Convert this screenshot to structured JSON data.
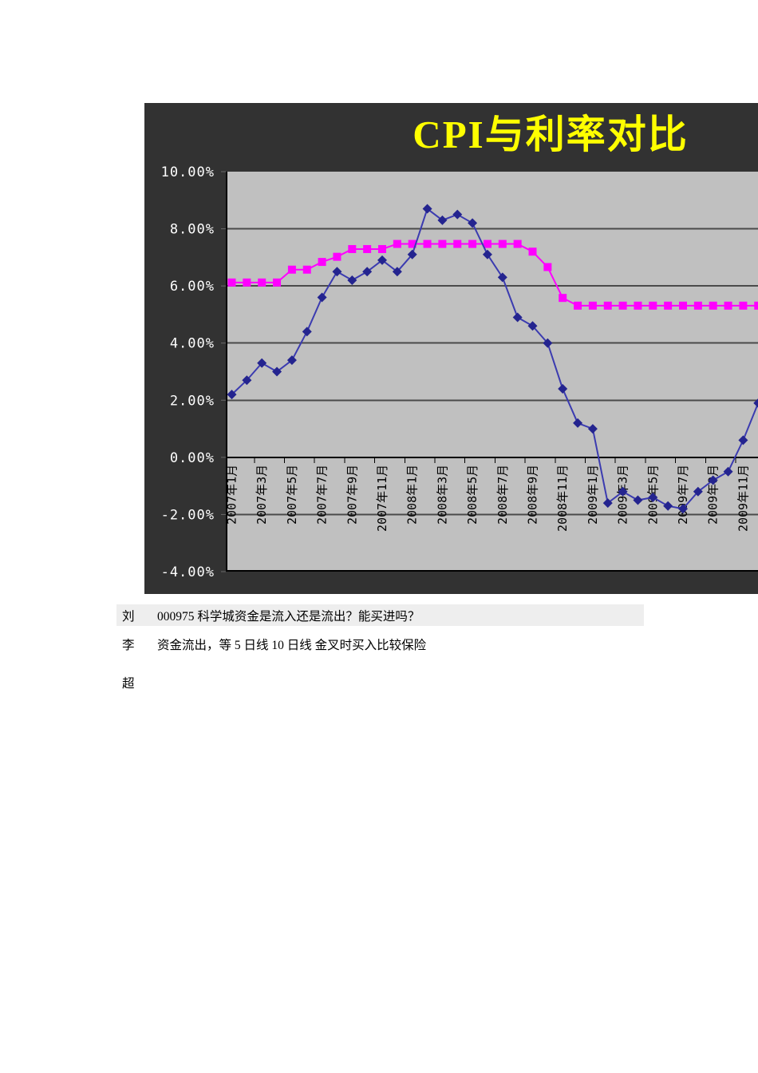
{
  "page": {
    "background": "#ffffff"
  },
  "chart_data": {
    "type": "line",
    "title": "CPI与利率对比",
    "title_color": "#ffff00",
    "chart_bg": "#323232",
    "plot_bg": "#c0c0c0",
    "gridline_color": "#4a4a4a",
    "axis_color": "#000000",
    "y_label_color": "#ffffff",
    "x_label_color": "#000000",
    "ylim": [
      -4,
      10
    ],
    "grid": true,
    "legend": "none",
    "y_tick_values": [
      10,
      8,
      6,
      4,
      2,
      0,
      -2,
      -4
    ],
    "y_tick_labels": [
      "10.00%",
      "8.00%",
      "6.00%",
      "4.00%",
      "2.00%",
      "0.00%",
      "-2.00%",
      "-4.00%"
    ],
    "x_tick_labels": [
      "2007年1月",
      "2007年3月",
      "2007年5月",
      "2007年7月",
      "2007年9月",
      "2007年11月",
      "2008年1月",
      "2008年3月",
      "2008年5月",
      "2008年7月",
      "2008年9月",
      "2008年11月",
      "2009年1月",
      "2009年3月",
      "2009年5月",
      "2009年7月",
      "2009年9月",
      "2009年11月"
    ],
    "n_points": 36,
    "series": [
      {
        "name": "CPI",
        "marker": "diamond",
        "line_color": "#3b3bb0",
        "marker_color": "#24248f",
        "values": [
          2.2,
          2.7,
          3.3,
          3.0,
          3.4,
          4.4,
          5.6,
          6.5,
          6.2,
          6.5,
          6.9,
          6.5,
          7.1,
          8.7,
          8.3,
          8.5,
          8.2,
          7.1,
          6.3,
          4.9,
          4.6,
          4.0,
          2.4,
          1.2,
          1.0,
          -1.6,
          -1.2,
          -1.5,
          -1.4,
          -1.7,
          -1.8,
          -1.2,
          -0.8,
          -0.5,
          0.6,
          1.9
        ]
      },
      {
        "name": "利率",
        "marker": "square",
        "line_color": "#ff00ff",
        "marker_color": "#ff00ff",
        "values": [
          6.12,
          6.12,
          6.12,
          6.12,
          6.57,
          6.57,
          6.84,
          7.02,
          7.29,
          7.29,
          7.29,
          7.47,
          7.47,
          7.47,
          7.47,
          7.47,
          7.47,
          7.47,
          7.47,
          7.47,
          7.2,
          6.66,
          5.58,
          5.31,
          5.31,
          5.31,
          5.31,
          5.31,
          5.31,
          5.31,
          5.31,
          5.31,
          5.31,
          5.31,
          5.31,
          5.31
        ]
      }
    ]
  },
  "comments": {
    "highlight_color": "#eeeeee",
    "items": [
      {
        "speaker": "刘",
        "text": "000975 科学城资金是流入还是流出？能买进吗？",
        "highlighted": true
      },
      {
        "speaker": "李",
        "text": "资金流出，等 5 日线 10 日线  金叉时买入比较保险",
        "highlighted": false
      },
      {
        "speaker": "超",
        "text": "",
        "highlighted": false
      }
    ]
  }
}
